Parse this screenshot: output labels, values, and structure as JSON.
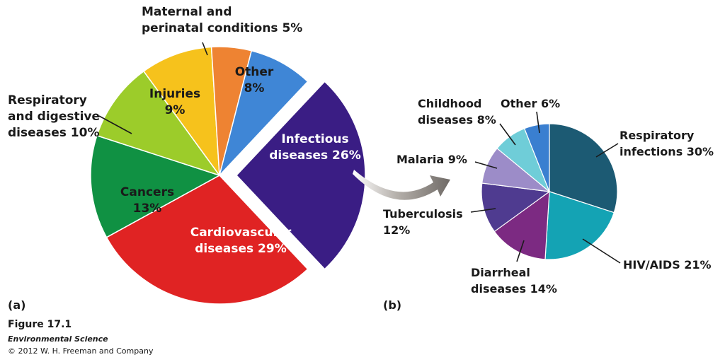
{
  "figure": {
    "number": "Figure 17.1",
    "book": "Environmental Science",
    "copyright": "© 2012 W. H. Freeman and Company"
  },
  "chart_data": [
    {
      "type": "pie",
      "panel": "(a)",
      "title": "",
      "slices": [
        {
          "label": "Infectious diseases",
          "value": 26,
          "color": "#3a1d84",
          "exploded": true
        },
        {
          "label": "Cardiovascular diseases",
          "value": 29,
          "color": "#e02323"
        },
        {
          "label": "Cancers",
          "value": 13,
          "color": "#109143"
        },
        {
          "label": "Respiratory and digestive diseases",
          "value": 10,
          "color": "#9ccc2a"
        },
        {
          "label": "Injuries",
          "value": 9,
          "color": "#f6c21c"
        },
        {
          "label": "Maternal and perinatal conditions",
          "value": 5,
          "color": "#ee8332"
        },
        {
          "label": "Other",
          "value": 8,
          "color": "#3f86d6"
        }
      ],
      "display_labels": [
        {
          "lines": [
            "Infectious",
            "diseases 26%"
          ]
        },
        {
          "lines": [
            "Cardiovascular",
            "diseases 29%"
          ]
        },
        {
          "lines": [
            "Cancers",
            "13%"
          ]
        },
        {
          "lines": [
            "Respiratory",
            "and digestive",
            "diseases 10%"
          ]
        },
        {
          "lines": [
            "Injuries",
            "9%"
          ]
        },
        {
          "lines": [
            "Maternal and",
            "perinatal conditions 5%"
          ]
        },
        {
          "lines": [
            "Other",
            "8%"
          ]
        }
      ]
    },
    {
      "type": "pie",
      "panel": "(b)",
      "title": "",
      "slices": [
        {
          "label": "Respiratory infections",
          "value": 30,
          "color": "#1c5a73"
        },
        {
          "label": "HIV/AIDS",
          "value": 21,
          "color": "#14a3b4"
        },
        {
          "label": "Diarrheal diseases",
          "value": 14,
          "color": "#7c2a82"
        },
        {
          "label": "Tuberculosis",
          "value": 12,
          "color": "#4f3b90"
        },
        {
          "label": "Malaria",
          "value": 9,
          "color": "#9c8cc8"
        },
        {
          "label": "Childhood diseases",
          "value": 8,
          "color": "#6fcdd8"
        },
        {
          "label": "Other",
          "value": 6,
          "color": "#3a7fd0"
        }
      ],
      "display_labels": [
        {
          "lines": [
            "Respiratory",
            "infections 30%"
          ]
        },
        {
          "lines": [
            "HIV/AIDS 21%"
          ]
        },
        {
          "lines": [
            "Diarrheal",
            "diseases 14%"
          ]
        },
        {
          "lines": [
            "Tuberculosis",
            "12%"
          ]
        },
        {
          "lines": [
            "Malaria 9%"
          ]
        },
        {
          "lines": [
            "Childhood",
            "diseases 8%"
          ]
        },
        {
          "lines": [
            "Other 6%"
          ]
        }
      ]
    }
  ]
}
